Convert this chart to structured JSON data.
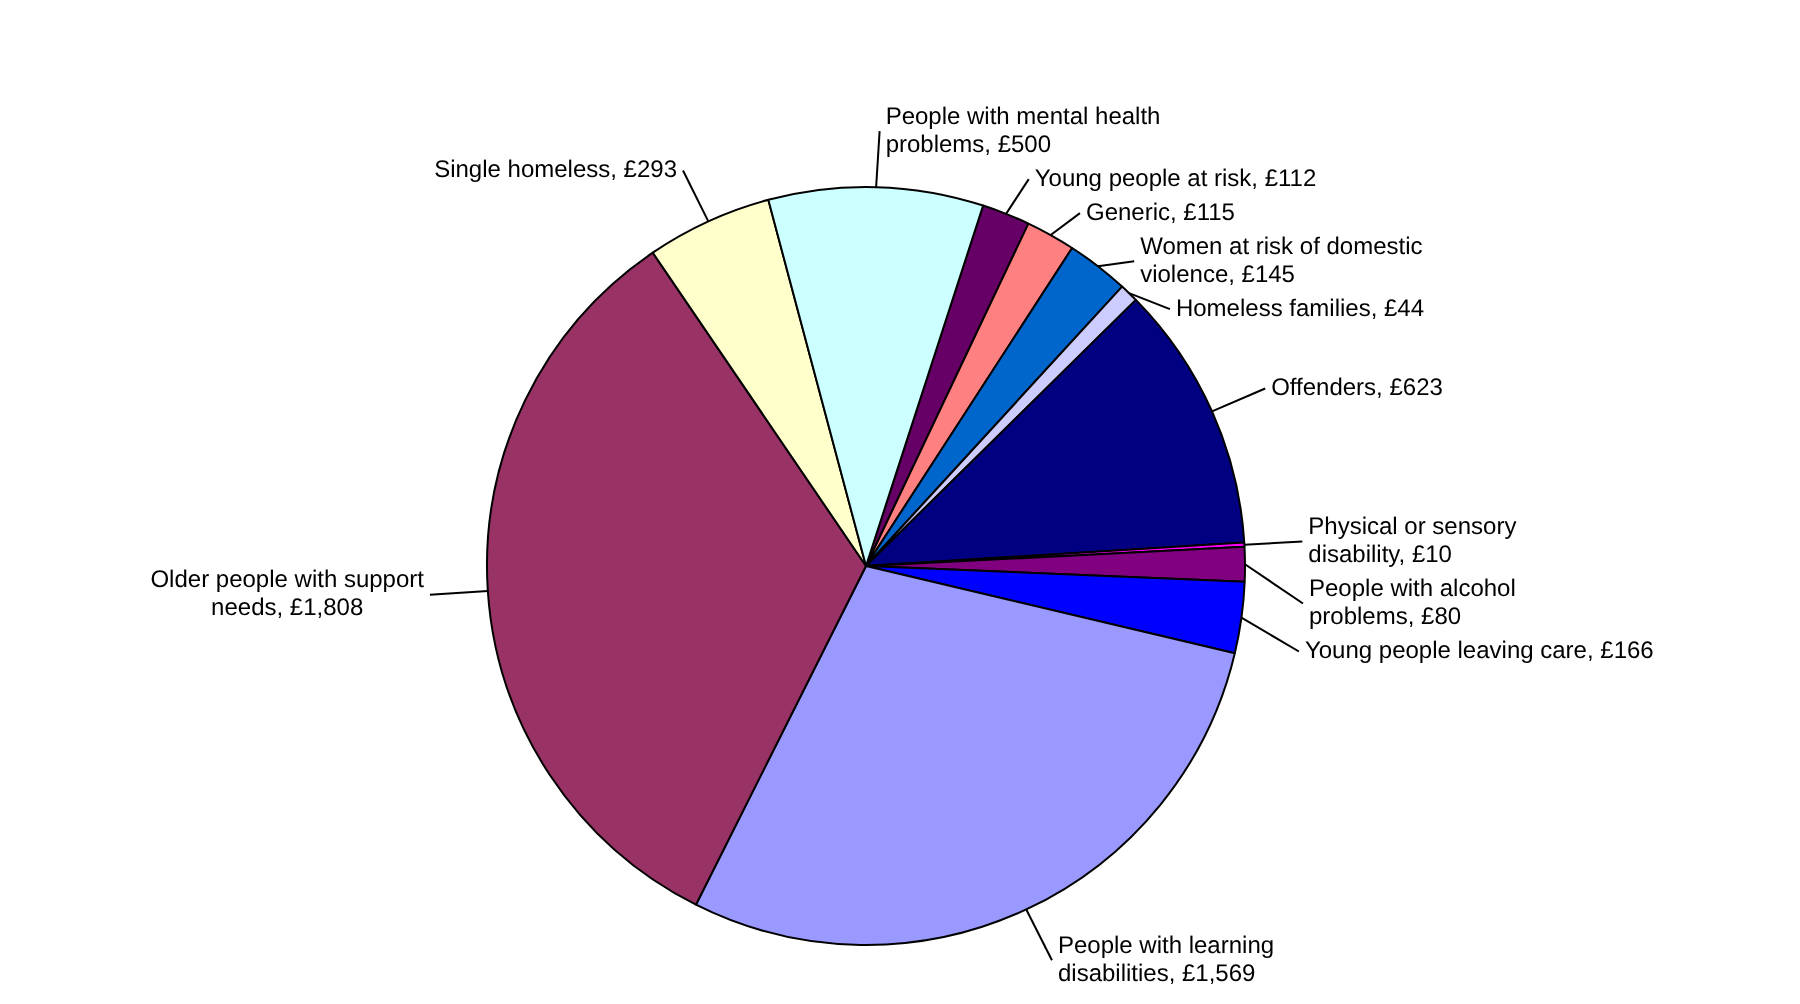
{
  "chart_data": {
    "type": "pie",
    "categories": [
      "Young people at risk",
      "Generic",
      "Women at risk of domestic violence",
      "Homeless families",
      "Offenders",
      "Physical or sensory disability",
      "People with alcohol problems",
      "Young people leaving care",
      "People with learning disabilities",
      "Older people with support needs",
      "Single homeless",
      "People with mental health problems"
    ],
    "values": [
      112,
      115,
      145,
      44,
      623,
      10,
      80,
      166,
      1569,
      1808,
      293,
      500
    ],
    "value_labels": [
      "£112",
      "£115",
      "£145",
      "£44",
      "£623",
      "£10",
      "£80",
      "£166",
      "£1,569",
      "£1,808",
      "£293",
      "£500"
    ],
    "colors": [
      "#660066",
      "#ff8080",
      "#0066cc",
      "#ccccff",
      "#000080",
      "#ff00ff",
      "#800080",
      "#0000ff",
      "#9999ff",
      "#993366",
      "#ffffcc",
      "#ccffff"
    ],
    "legend": false
  }
}
